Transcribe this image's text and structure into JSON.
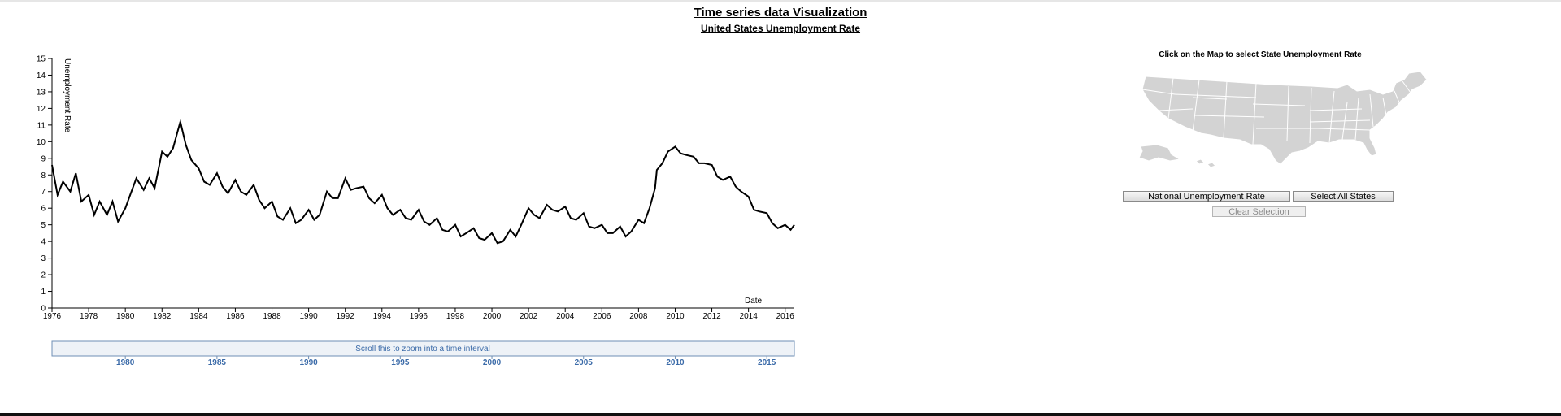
{
  "page": {
    "title": "Time series data Visualization",
    "subtitle": "United States Unemployment Rate"
  },
  "chart_data": {
    "type": "line",
    "xlabel": "Date",
    "ylabel": "Unemployment Rate",
    "xlim": [
      1976.0,
      2016.5
    ],
    "ylim": [
      0,
      15
    ],
    "y_ticks": [
      0,
      1,
      2,
      3,
      4,
      5,
      6,
      7,
      8,
      9,
      10,
      11,
      12,
      13,
      14,
      15
    ],
    "x_ticks": [
      "1976",
      "1978",
      "1980",
      "1982",
      "1984",
      "1986",
      "1988",
      "1990",
      "1992",
      "1994",
      "1996",
      "1998",
      "2000",
      "2002",
      "2004",
      "2006",
      "2008",
      "2010",
      "2012",
      "2014",
      "2016"
    ],
    "series": [
      {
        "values": [
          [
            1976.0,
            8.6
          ],
          [
            1976.3,
            6.8
          ],
          [
            1976.6,
            7.6
          ],
          [
            1977.0,
            7.0
          ],
          [
            1977.3,
            8.1
          ],
          [
            1977.6,
            6.4
          ],
          [
            1978.0,
            6.8
          ],
          [
            1978.3,
            5.6
          ],
          [
            1978.6,
            6.4
          ],
          [
            1979.0,
            5.6
          ],
          [
            1979.3,
            6.4
          ],
          [
            1979.6,
            5.2
          ],
          [
            1980.0,
            6.0
          ],
          [
            1980.3,
            6.9
          ],
          [
            1980.6,
            7.8
          ],
          [
            1981.0,
            7.1
          ],
          [
            1981.3,
            7.8
          ],
          [
            1981.6,
            7.2
          ],
          [
            1982.0,
            9.4
          ],
          [
            1982.3,
            9.1
          ],
          [
            1982.6,
            9.6
          ],
          [
            1982.9,
            10.8
          ],
          [
            1983.0,
            11.2
          ],
          [
            1983.3,
            9.8
          ],
          [
            1983.6,
            8.9
          ],
          [
            1984.0,
            8.4
          ],
          [
            1984.3,
            7.6
          ],
          [
            1984.6,
            7.4
          ],
          [
            1985.0,
            8.1
          ],
          [
            1985.3,
            7.3
          ],
          [
            1985.6,
            6.9
          ],
          [
            1986.0,
            7.7
          ],
          [
            1986.3,
            7.0
          ],
          [
            1986.6,
            6.8
          ],
          [
            1987.0,
            7.4
          ],
          [
            1987.3,
            6.5
          ],
          [
            1987.6,
            6.0
          ],
          [
            1988.0,
            6.4
          ],
          [
            1988.3,
            5.5
          ],
          [
            1988.6,
            5.3
          ],
          [
            1989.0,
            6.0
          ],
          [
            1989.3,
            5.1
          ],
          [
            1989.6,
            5.3
          ],
          [
            1990.0,
            5.9
          ],
          [
            1990.3,
            5.3
          ],
          [
            1990.6,
            5.6
          ],
          [
            1991.0,
            7.0
          ],
          [
            1991.3,
            6.6
          ],
          [
            1991.6,
            6.6
          ],
          [
            1992.0,
            7.8
          ],
          [
            1992.3,
            7.1
          ],
          [
            1992.6,
            7.2
          ],
          [
            1993.0,
            7.3
          ],
          [
            1993.3,
            6.6
          ],
          [
            1993.6,
            6.3
          ],
          [
            1994.0,
            6.8
          ],
          [
            1994.3,
            6.0
          ],
          [
            1994.6,
            5.6
          ],
          [
            1995.0,
            5.9
          ],
          [
            1995.3,
            5.4
          ],
          [
            1995.6,
            5.3
          ],
          [
            1996.0,
            5.9
          ],
          [
            1996.3,
            5.2
          ],
          [
            1996.6,
            5.0
          ],
          [
            1997.0,
            5.4
          ],
          [
            1997.3,
            4.7
          ],
          [
            1997.6,
            4.6
          ],
          [
            1998.0,
            5.0
          ],
          [
            1998.3,
            4.3
          ],
          [
            1998.6,
            4.5
          ],
          [
            1999.0,
            4.8
          ],
          [
            1999.3,
            4.2
          ],
          [
            1999.6,
            4.1
          ],
          [
            2000.0,
            4.5
          ],
          [
            2000.3,
            3.9
          ],
          [
            2000.6,
            4.0
          ],
          [
            2001.0,
            4.7
          ],
          [
            2001.3,
            4.3
          ],
          [
            2001.6,
            5.0
          ],
          [
            2002.0,
            6.0
          ],
          [
            2002.3,
            5.6
          ],
          [
            2002.6,
            5.4
          ],
          [
            2003.0,
            6.2
          ],
          [
            2003.3,
            5.9
          ],
          [
            2003.6,
            5.8
          ],
          [
            2004.0,
            6.1
          ],
          [
            2004.3,
            5.4
          ],
          [
            2004.6,
            5.3
          ],
          [
            2005.0,
            5.7
          ],
          [
            2005.3,
            4.9
          ],
          [
            2005.6,
            4.8
          ],
          [
            2006.0,
            5.0
          ],
          [
            2006.3,
            4.5
          ],
          [
            2006.6,
            4.5
          ],
          [
            2007.0,
            4.9
          ],
          [
            2007.3,
            4.3
          ],
          [
            2007.6,
            4.6
          ],
          [
            2008.0,
            5.3
          ],
          [
            2008.3,
            5.1
          ],
          [
            2008.6,
            6.0
          ],
          [
            2008.9,
            7.2
          ],
          [
            2009.0,
            8.3
          ],
          [
            2009.3,
            8.7
          ],
          [
            2009.6,
            9.4
          ],
          [
            2010.0,
            9.7
          ],
          [
            2010.3,
            9.3
          ],
          [
            2010.6,
            9.2
          ],
          [
            2011.0,
            9.1
          ],
          [
            2011.3,
            8.7
          ],
          [
            2011.6,
            8.7
          ],
          [
            2012.0,
            8.6
          ],
          [
            2012.3,
            7.9
          ],
          [
            2012.6,
            7.7
          ],
          [
            2013.0,
            7.9
          ],
          [
            2013.3,
            7.3
          ],
          [
            2013.6,
            7.0
          ],
          [
            2014.0,
            6.7
          ],
          [
            2014.3,
            5.9
          ],
          [
            2014.6,
            5.8
          ],
          [
            2015.0,
            5.7
          ],
          [
            2015.3,
            5.1
          ],
          [
            2015.6,
            4.8
          ],
          [
            2016.0,
            5.0
          ],
          [
            2016.3,
            4.7
          ],
          [
            2016.5,
            5.0
          ]
        ]
      }
    ]
  },
  "brush": {
    "label": "Scroll this to zoom into a time interval",
    "ticks": [
      "1980",
      "1985",
      "1990",
      "1995",
      "2000",
      "2005",
      "2010",
      "2015"
    ]
  },
  "map_panel": {
    "prompt": "Click on the Map to select State Unemployment Rate",
    "national_button": "National Unemployment Rate",
    "select_all_button": "Select All States",
    "clear_button": "Clear Selection"
  },
  "colors": {
    "line": "#000000",
    "brush_fill": "#eef2f7",
    "brush_border": "#6f8fb5",
    "brush_text": "#3a6aa8",
    "map_fill": "#d3d3d3",
    "map_stroke": "#ffffff"
  }
}
